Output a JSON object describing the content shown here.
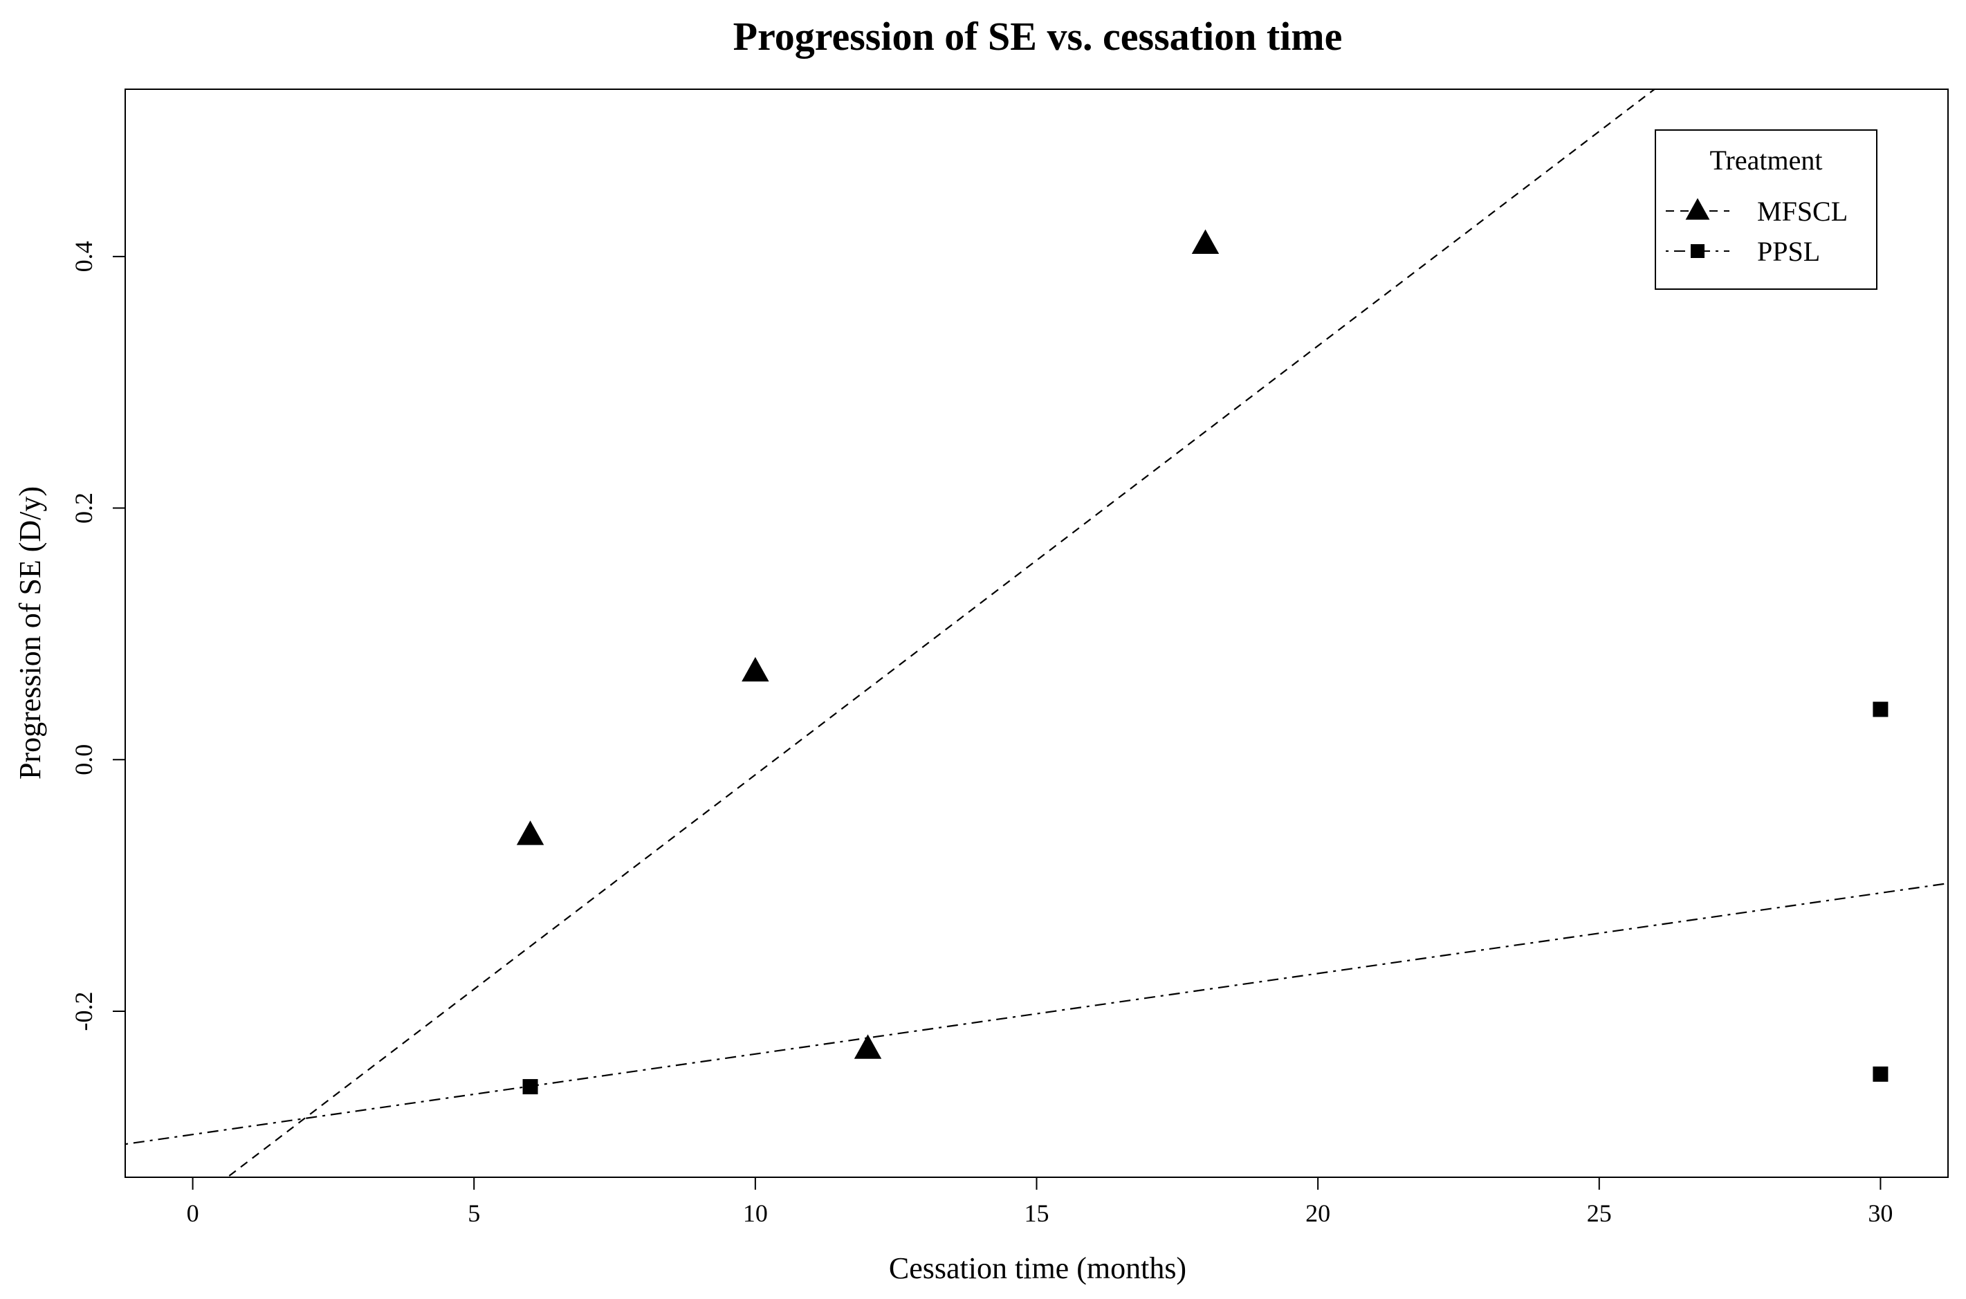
{
  "chart_data": {
    "type": "scatter",
    "title": "Progression of SE vs. cessation time",
    "xlabel": "Cessation time (months)",
    "ylabel": "Progression of SE (D/y)",
    "xlim": [
      -1.2,
      31.2
    ],
    "ylim": [
      -0.332,
      0.533
    ],
    "xticks": [
      0,
      5,
      10,
      15,
      20,
      25,
      30
    ],
    "yticks": [
      -0.2,
      0.0,
      0.2,
      0.4
    ],
    "ytick_labels": [
      "-0.2",
      "0.0",
      "0.2",
      "0.4"
    ],
    "legend": {
      "title": "Treatment",
      "position": "top-right"
    },
    "series": [
      {
        "name": "MFSCL",
        "marker": "triangle",
        "line_style": "dashed",
        "x": [
          6,
          10,
          12,
          18
        ],
        "y": [
          -0.06,
          0.07,
          -0.23,
          0.41
        ],
        "fit": {
          "intercept": -0.353,
          "slope": 0.0341
        }
      },
      {
        "name": "PPSL",
        "marker": "square",
        "line_style": "dotdash",
        "x": [
          6,
          30,
          30
        ],
        "y": [
          -0.26,
          0.04,
          -0.25
        ],
        "fit": {
          "intercept": -0.298,
          "slope": 0.0064
        }
      }
    ]
  }
}
